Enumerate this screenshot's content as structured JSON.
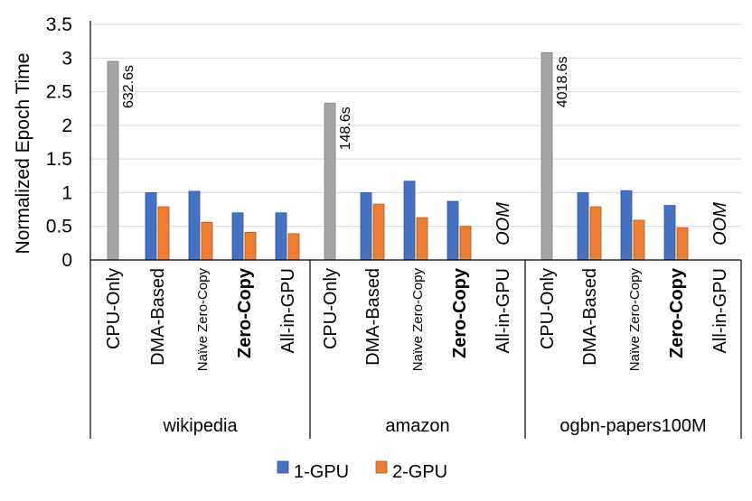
{
  "chart_data": {
    "type": "bar",
    "ylabel": "Normalized Epoch Time",
    "ylim": [
      0,
      3.5
    ],
    "yticks": [
      "0",
      "0.5",
      "1",
      "1.5",
      "2",
      "2.5",
      "3",
      "3.5"
    ],
    "grid": true,
    "legend_position": "bottom-center",
    "series": [
      {
        "name": "1-GPU",
        "color": "#4472C4"
      },
      {
        "name": "2-GPU",
        "color": "#ED7D31"
      }
    ],
    "cpu_color": "#A5A5A5",
    "groups": [
      {
        "name": "wikipedia",
        "categories": [
          {
            "label": "CPU-Only",
            "style": "normal",
            "cpu": 2.95,
            "annotation": "632.6s"
          },
          {
            "label": "DMA-Based",
            "style": "normal",
            "gpu1": 1.0,
            "gpu2": 0.79
          },
          {
            "label": "Naïve Zero-Copy",
            "style": "small",
            "gpu1": 1.02,
            "gpu2": 0.56
          },
          {
            "label": "Zero-Copy",
            "style": "bold",
            "gpu1": 0.7,
            "gpu2": 0.41
          },
          {
            "label": "All-in-GPU",
            "style": "normal",
            "gpu1": 0.7,
            "gpu2": 0.39
          }
        ]
      },
      {
        "name": "amazon",
        "categories": [
          {
            "label": "CPU-Only",
            "style": "normal",
            "cpu": 2.33,
            "annotation": "148.6s"
          },
          {
            "label": "DMA-Based",
            "style": "normal",
            "gpu1": 1.0,
            "gpu2": 0.83
          },
          {
            "label": "Naïve Zero-Copy",
            "style": "small",
            "gpu1": 1.17,
            "gpu2": 0.63
          },
          {
            "label": "Zero-Copy",
            "style": "bold",
            "gpu1": 0.87,
            "gpu2": 0.5
          },
          {
            "label": "All-in-GPU",
            "style": "normal",
            "oom": "OOM"
          }
        ]
      },
      {
        "name": "ogbn-papers100M",
        "categories": [
          {
            "label": "CPU-Only",
            "style": "normal",
            "cpu": 3.08,
            "annotation": "4018.6s"
          },
          {
            "label": "DMA-Based",
            "style": "normal",
            "gpu1": 1.0,
            "gpu2": 0.79
          },
          {
            "label": "Naïve Zero-Copy",
            "style": "small",
            "gpu1": 1.03,
            "gpu2": 0.59
          },
          {
            "label": "Zero-Copy",
            "style": "bold",
            "gpu1": 0.81,
            "gpu2": 0.48
          },
          {
            "label": "All-in-GPU",
            "style": "normal",
            "oom": "OOM"
          }
        ]
      }
    ]
  }
}
